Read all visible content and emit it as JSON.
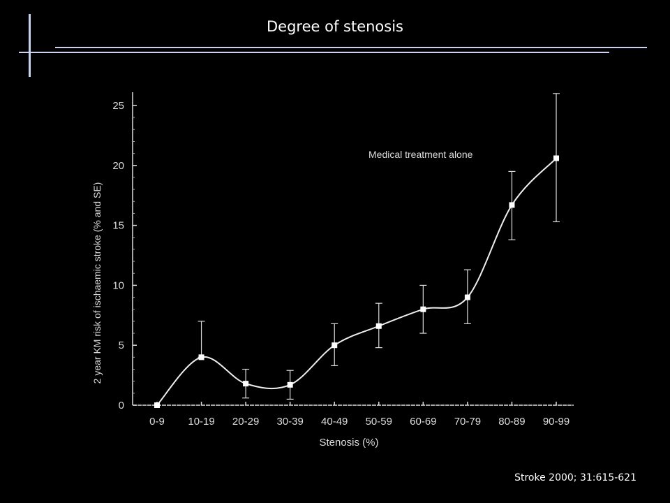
{
  "slide": {
    "title": "Degree of stenosis",
    "citation": "Stroke 2000; 31:615-621"
  },
  "colors": {
    "background": "#000000",
    "accent_line": "#c9d3ef",
    "plot_ink": "#e8e8e8"
  },
  "chart_data": {
    "type": "line",
    "title": "",
    "xlabel": "Stenosis (%)",
    "ylabel": "2 year KM risk of ischaemic stroke (% and SE)",
    "annotation": "Medical treatment alone",
    "categories": [
      "0-9",
      "10-19",
      "20-29",
      "30-39",
      "40-49",
      "50-59",
      "60-69",
      "70-79",
      "80-89",
      "90-99"
    ],
    "ylim": [
      0,
      25
    ],
    "yticks": [
      0,
      5,
      10,
      15,
      20,
      25
    ],
    "ytick_labels": [
      "0",
      "5",
      "10",
      "15",
      "20",
      "25"
    ],
    "grid": false,
    "series": [
      {
        "values": [
          0,
          4.0,
          1.8,
          1.7,
          5.0,
          6.6,
          8.0,
          9.0,
          16.7,
          20.6
        ],
        "error_upper": [
          0,
          7.0,
          3.0,
          2.9,
          6.8,
          8.5,
          10.0,
          11.3,
          19.5,
          26.0
        ],
        "error_lower": [
          0,
          4.0,
          0.6,
          0.5,
          3.3,
          4.8,
          6.0,
          6.8,
          13.8,
          15.3
        ]
      }
    ]
  }
}
